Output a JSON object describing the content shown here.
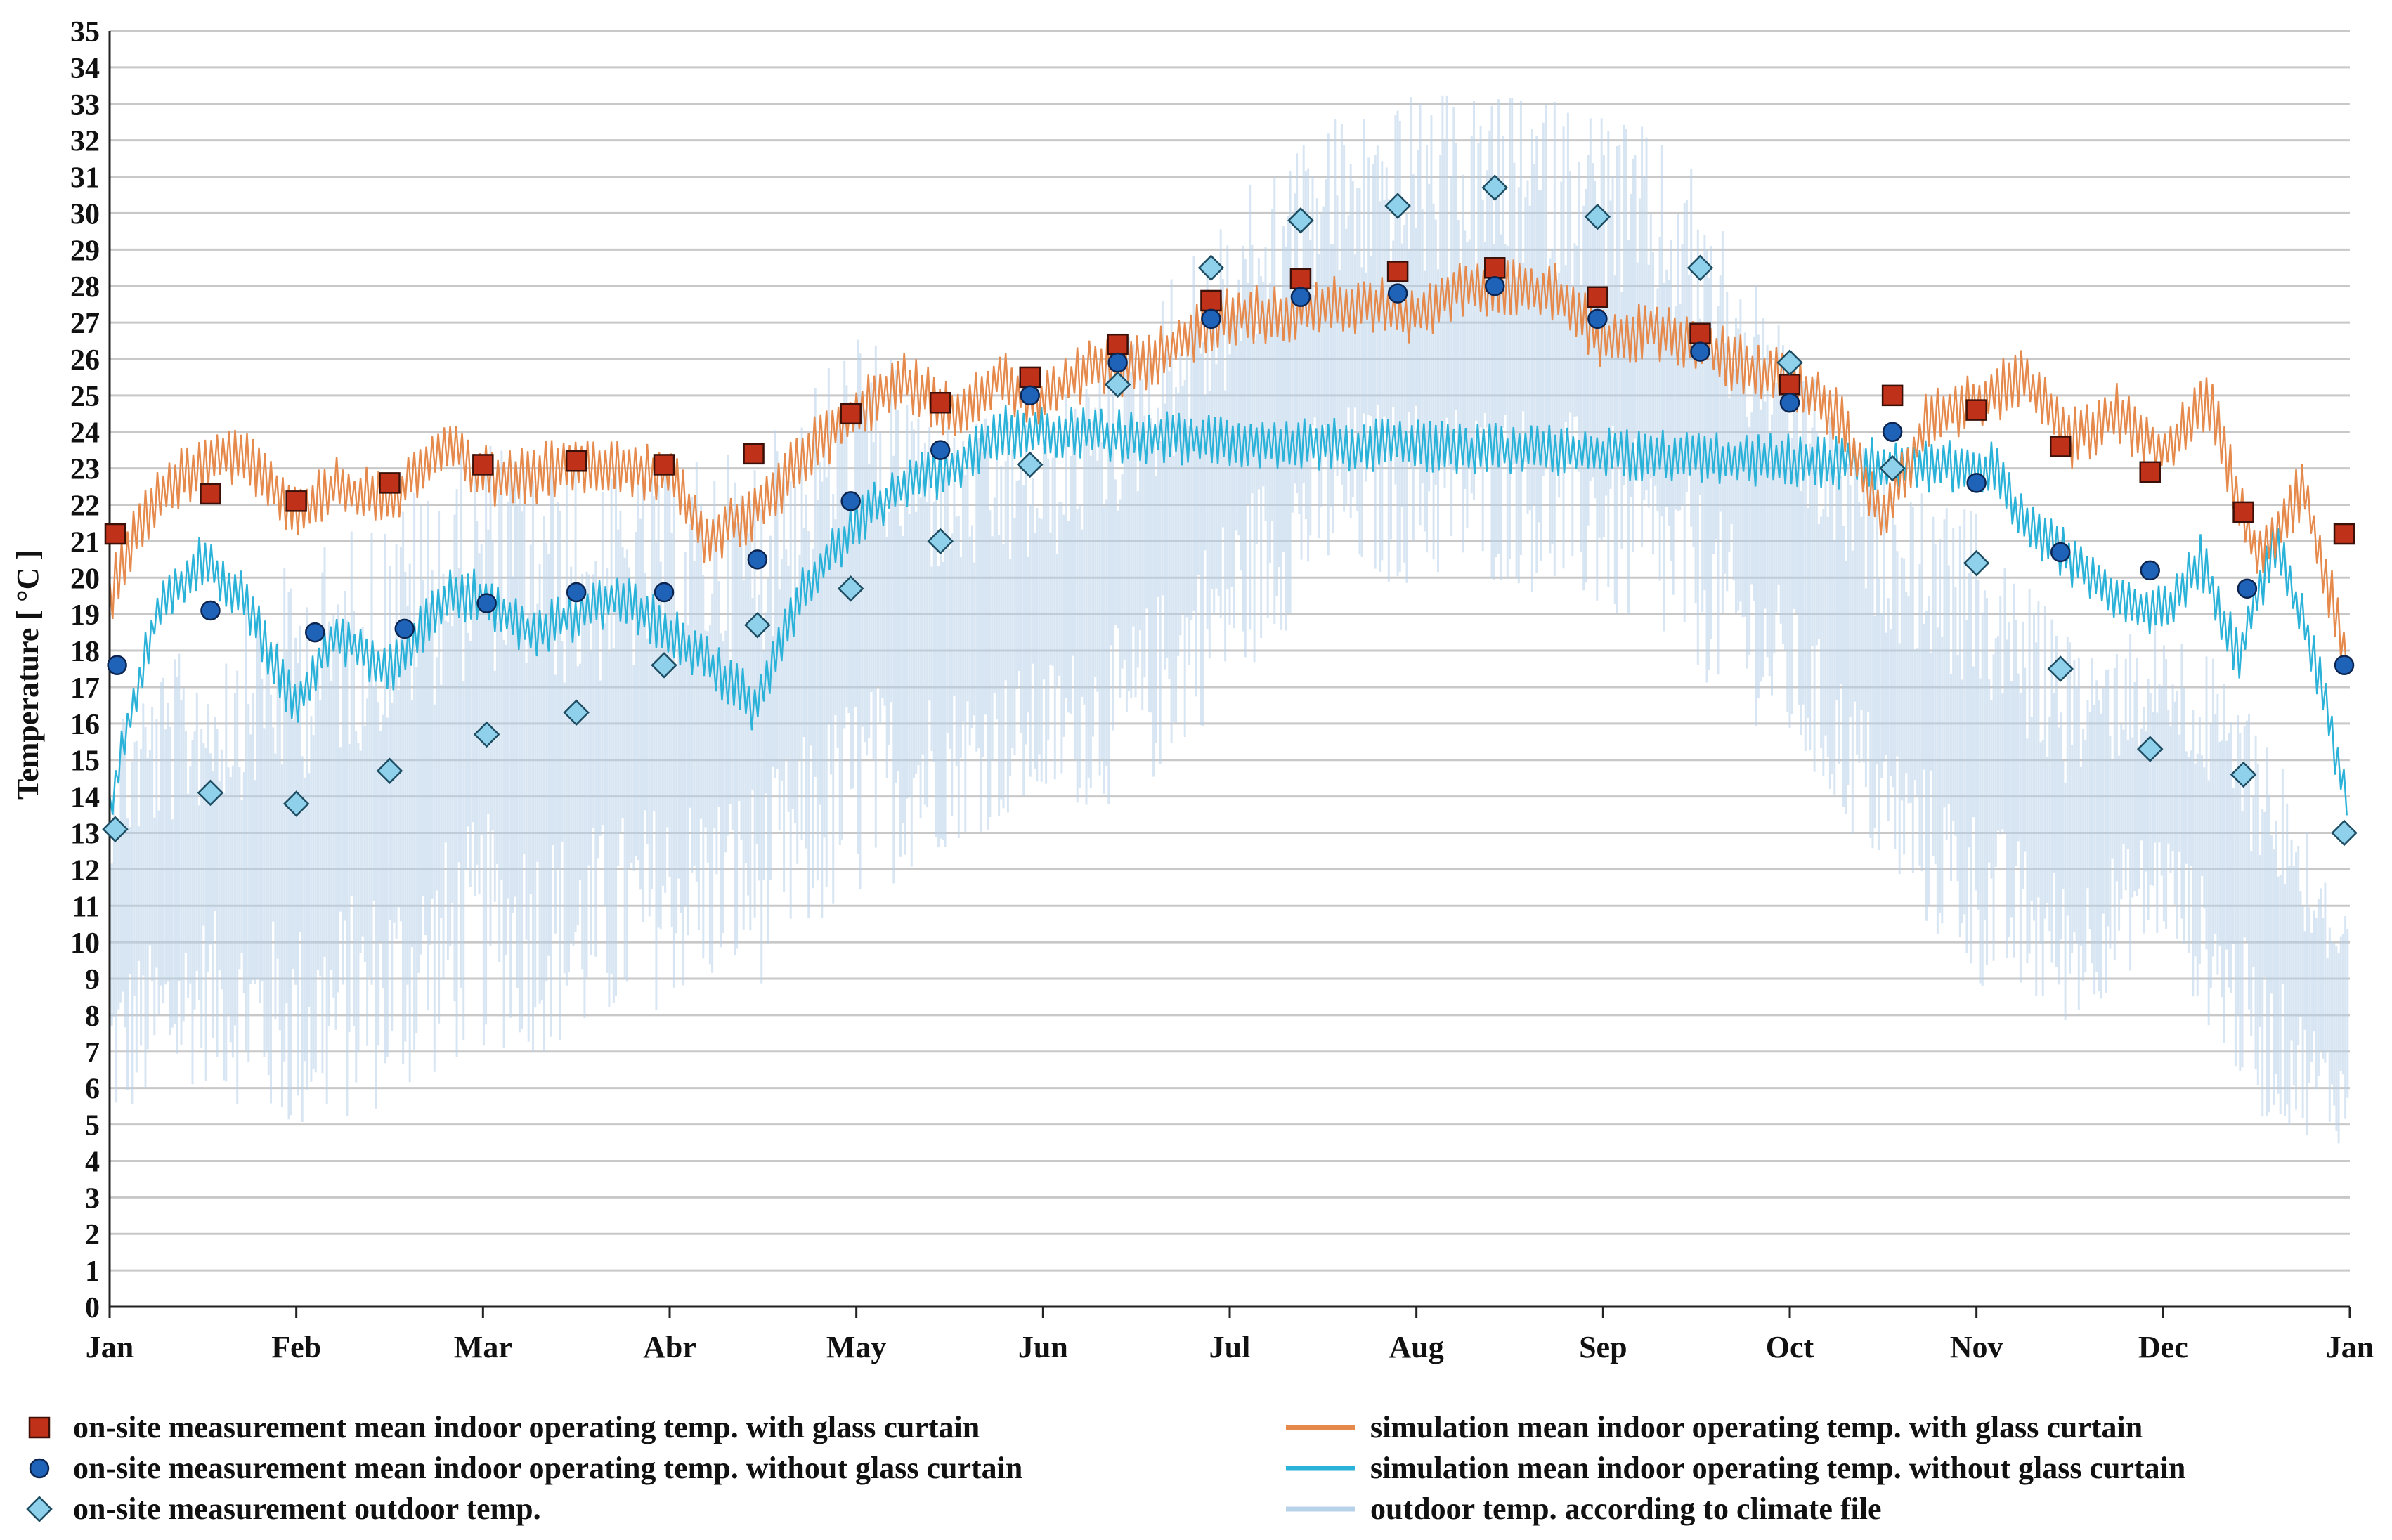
{
  "chart_data": {
    "type": "line",
    "title": "",
    "xlabel": "",
    "ylabel": "Temperature [ °C ]",
    "ylim": [
      0,
      35
    ],
    "yticks": [
      0,
      1,
      2,
      3,
      4,
      5,
      6,
      7,
      8,
      9,
      10,
      11,
      12,
      13,
      14,
      15,
      16,
      17,
      18,
      19,
      20,
      21,
      22,
      23,
      24,
      25,
      26,
      27,
      28,
      29,
      30,
      31,
      32,
      33,
      34,
      35
    ],
    "xlim": [
      0,
      12
    ],
    "month_ticks": [
      "Jan",
      "Feb",
      "Mar",
      "Abr",
      "May",
      "Jun",
      "Jul",
      "Aug",
      "Sep",
      "Oct",
      "Nov",
      "Dec",
      "Jan"
    ],
    "grid": true,
    "legend_position": "bottom",
    "colors": {
      "with_curtain_marker": "#c0311a",
      "without_curtain_marker": "#1f63b8",
      "outdoor_marker": "#8fd0ea",
      "sim_with": "#e58a4c",
      "sim_without": "#2bb2d9",
      "climate": "#b8d2ea",
      "grid": "#c8c8c8"
    },
    "series": [
      {
        "name": "on-site measurement mean indoor operating temp. with glass curtain",
        "kind": "marker-square",
        "x": [
          0.03,
          0.54,
          1.0,
          1.5,
          2.0,
          2.5,
          2.97,
          3.45,
          3.97,
          4.45,
          4.93,
          5.4,
          5.9,
          6.38,
          6.9,
          7.42,
          7.97,
          8.52,
          9.0,
          9.55,
          10.0,
          10.45,
          10.93,
          11.43,
          11.97
        ],
        "y": [
          21.2,
          22.3,
          22.1,
          22.6,
          23.1,
          23.2,
          23.1,
          23.4,
          24.5,
          24.8,
          25.5,
          26.4,
          27.6,
          28.2,
          28.4,
          28.5,
          27.7,
          26.7,
          25.3,
          25.0,
          24.6,
          23.6,
          22.9,
          21.8,
          21.2
        ]
      },
      {
        "name": "on-site measurement mean indoor operating temp. without glass curtain",
        "kind": "marker-circle",
        "x": [
          0.04,
          0.54,
          1.1,
          1.58,
          2.02,
          2.5,
          2.97,
          3.47,
          3.97,
          4.45,
          4.93,
          5.4,
          5.9,
          6.38,
          6.9,
          7.42,
          7.97,
          8.52,
          9.0,
          9.55,
          10.0,
          10.45,
          10.93,
          11.45,
          11.97
        ],
        "y": [
          17.6,
          19.1,
          18.5,
          18.6,
          19.3,
          19.6,
          19.6,
          20.5,
          22.1,
          23.5,
          25.0,
          25.9,
          27.1,
          27.7,
          27.8,
          28.0,
          27.1,
          26.2,
          24.8,
          24.0,
          22.6,
          20.7,
          20.2,
          19.7,
          17.6
        ]
      },
      {
        "name": "on-site measurement outdoor temp.",
        "kind": "marker-diamond",
        "x": [
          0.03,
          0.54,
          1.0,
          1.5,
          2.02,
          2.5,
          2.97,
          3.47,
          3.97,
          4.45,
          4.93,
          5.4,
          5.9,
          6.38,
          6.9,
          7.42,
          7.97,
          8.52,
          9.0,
          9.55,
          10.0,
          10.45,
          10.93,
          11.43,
          11.97
        ],
        "y": [
          13.1,
          14.1,
          13.8,
          14.7,
          15.7,
          16.3,
          17.6,
          18.7,
          19.7,
          21.0,
          23.1,
          25.3,
          28.5,
          29.8,
          30.2,
          30.7,
          29.9,
          28.5,
          25.9,
          23.0,
          20.4,
          17.5,
          15.3,
          14.6,
          13.0
        ]
      },
      {
        "name": "simulation mean indoor operating temp. with glass curtain",
        "kind": "line",
        "x": [
          0.0,
          0.15,
          0.3,
          0.5,
          0.7,
          1.0,
          1.2,
          1.5,
          1.8,
          2.0,
          2.25,
          2.5,
          2.75,
          3.0,
          3.2,
          3.5,
          3.75,
          4.0,
          4.25,
          4.5,
          4.75,
          5.0,
          5.25,
          5.5,
          5.75,
          6.0,
          6.25,
          6.5,
          6.75,
          7.0,
          7.25,
          7.5,
          7.75,
          8.0,
          8.25,
          8.5,
          8.75,
          9.0,
          9.25,
          9.5,
          9.75,
          10.0,
          10.25,
          10.5,
          10.75,
          11.0,
          11.25,
          11.5,
          11.75,
          12.0
        ],
        "y": [
          19.5,
          21.5,
          22.5,
          23.0,
          23.5,
          21.8,
          22.5,
          22.0,
          23.8,
          22.8,
          22.8,
          23.2,
          23.0,
          22.8,
          21.0,
          22.0,
          23.5,
          24.5,
          25.5,
          24.5,
          25.5,
          24.8,
          25.8,
          25.8,
          26.5,
          27.2,
          27.2,
          27.5,
          27.5,
          27.2,
          28.0,
          28.0,
          27.8,
          26.5,
          26.8,
          26.5,
          25.8,
          25.5,
          24.5,
          21.5,
          24.5,
          24.8,
          25.5,
          23.8,
          24.5,
          23.5,
          24.8,
          20.5,
          22.5,
          17.5
        ]
      },
      {
        "name": "simulation mean indoor operating temp. without glass curtain",
        "kind": "line",
        "x": [
          0.0,
          0.1,
          0.25,
          0.5,
          0.7,
          1.0,
          1.2,
          1.5,
          1.8,
          2.0,
          2.25,
          2.5,
          2.75,
          3.0,
          3.25,
          3.45,
          3.7,
          4.0,
          4.25,
          4.5,
          4.8,
          10.1,
          10.25,
          10.5,
          10.75,
          11.0,
          11.2,
          11.4,
          11.6,
          11.8,
          12.0
        ],
        "y": [
          13.5,
          16.0,
          19.0,
          20.5,
          19.5,
          16.5,
          18.5,
          17.5,
          19.5,
          19.5,
          18.5,
          19.0,
          19.5,
          18.5,
          17.5,
          16.5,
          19.5,
          21.5,
          22.5,
          23.0,
          24.0,
          23.0,
          21.5,
          20.5,
          19.5,
          19.0,
          20.5,
          17.8,
          21.0,
          18.0,
          13.5
        ]
      },
      {
        "name": "outdoor temp. according to climate file",
        "kind": "band",
        "x": [
          0.0,
          0.5,
          1.0,
          1.5,
          2.0,
          2.5,
          3.0,
          3.5,
          4.0,
          4.5,
          5.0,
          5.5,
          6.0,
          6.5,
          7.0,
          7.5,
          8.0,
          8.5,
          9.0,
          9.5,
          10.0,
          10.5,
          11.0,
          11.5,
          12.0
        ],
        "y_min": [
          4.0,
          5.5,
          3.5,
          4.5,
          6.0,
          6.0,
          7.5,
          8.0,
          10.0,
          12.0,
          13.0,
          13.0,
          16.0,
          19.0,
          19.0,
          19.0,
          18.0,
          16.5,
          14.5,
          11.0,
          8.0,
          7.0,
          9.5,
          4.5,
          4.0
        ],
        "y_max": [
          17.5,
          19.0,
          21.5,
          23.0,
          25.0,
          24.0,
          24.0,
          24.5,
          28.0,
          25.0,
          25.0,
          28.0,
          31.0,
          33.5,
          34.0,
          34.0,
          34.0,
          32.0,
          27.0,
          23.5,
          22.5,
          19.0,
          19.5,
          17.5,
          11.0
        ]
      }
    ]
  }
}
